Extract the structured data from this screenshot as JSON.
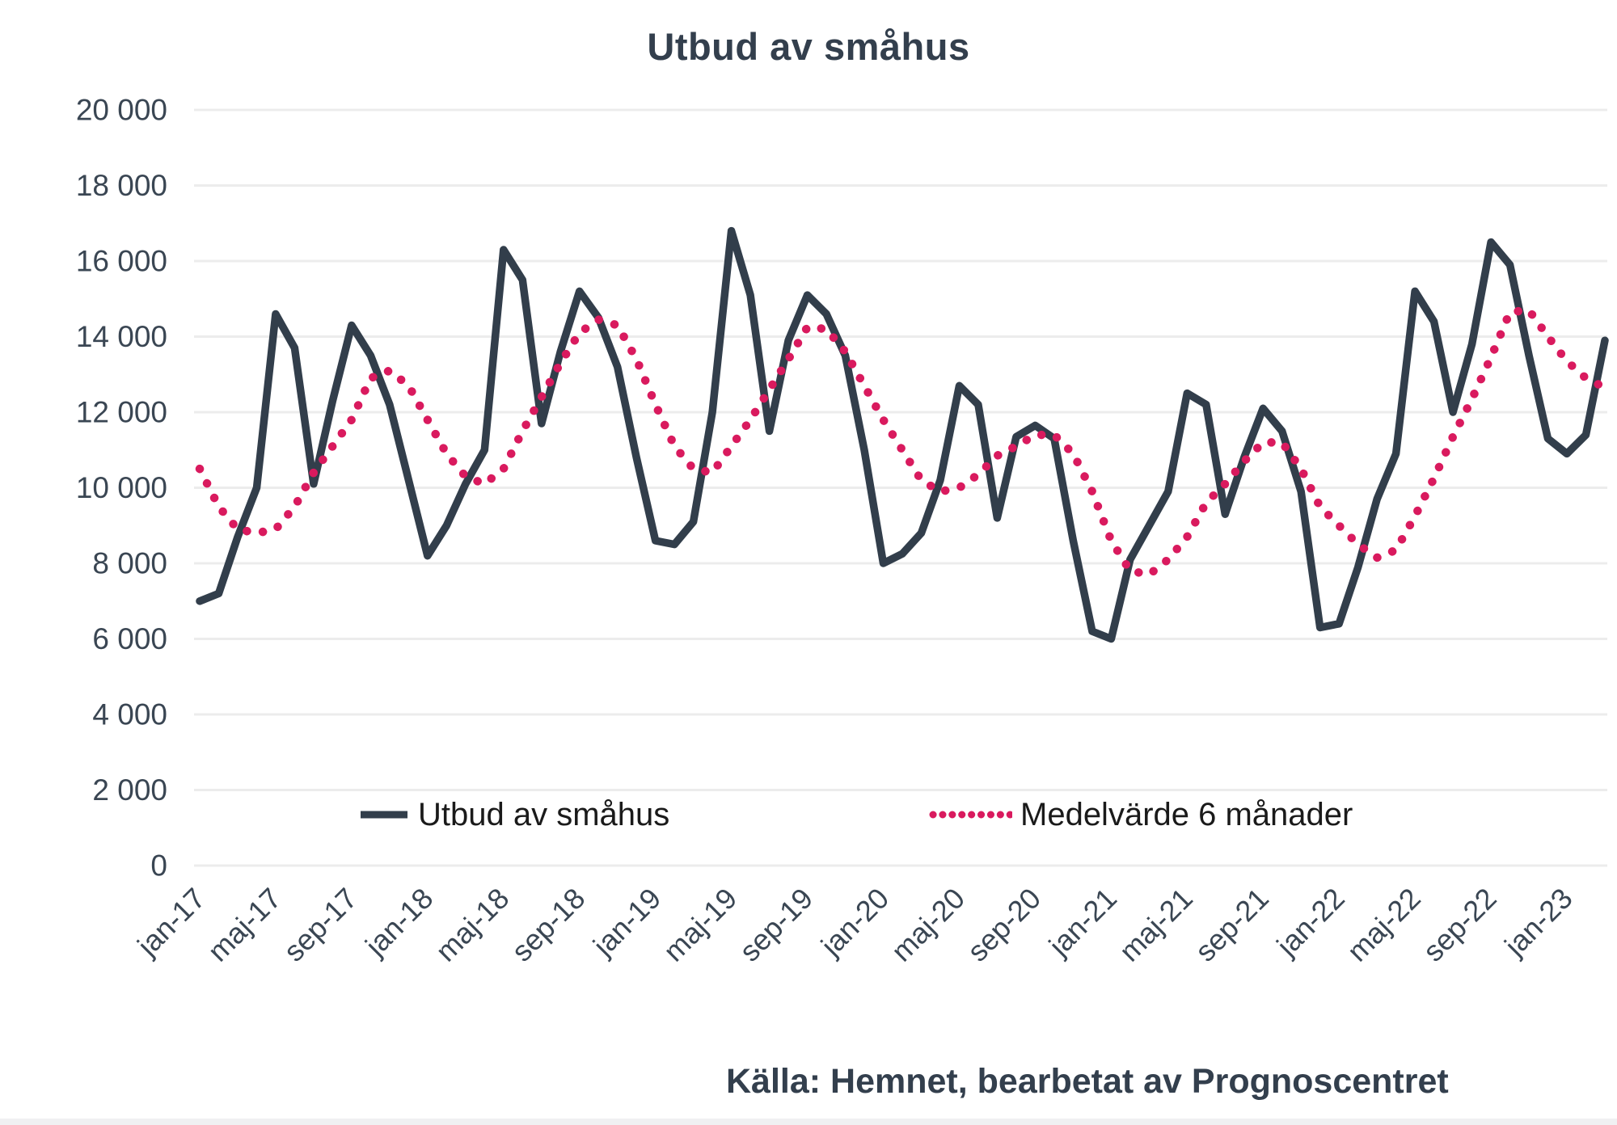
{
  "title": "Utbud av småhus",
  "source": "Källa: Hemnet, bearbetat av Prognoscentret",
  "colors": {
    "line_dark": "#323E4B",
    "line_pink": "#D91A5E",
    "grid": "#ECECEC",
    "axis_text": "#3A4653",
    "title_text": "#333F4D",
    "legend_text": "#1A1A1A",
    "source_text": "#333F4D",
    "background": "#FFFFFF",
    "bottom_strip": "#F0F0F2"
  },
  "legend": [
    {
      "label": "Utbud av småhus",
      "style": "solid"
    },
    {
      "label": "Medelvärde 6 månader",
      "style": "dotted"
    }
  ],
  "chart_data": {
    "type": "line",
    "title": "Utbud av småhus",
    "xlabel": "",
    "ylabel": "",
    "ylim": [
      0,
      20000
    ],
    "y_tick_step": 2000,
    "y_tick_labels": [
      "0",
      "2 000",
      "4 000",
      "6 000",
      "8 000",
      "10 000",
      "12 000",
      "14 000",
      "16 000",
      "18 000",
      "20 000"
    ],
    "grid": true,
    "legend_position": "inside-bottom",
    "x_tick_every": 4,
    "x": [
      "jan-17",
      "feb-17",
      "mar-17",
      "apr-17",
      "maj-17",
      "jun-17",
      "jul-17",
      "aug-17",
      "sep-17",
      "okt-17",
      "nov-17",
      "dec-17",
      "jan-18",
      "feb-18",
      "mar-18",
      "apr-18",
      "maj-18",
      "jun-18",
      "jul-18",
      "aug-18",
      "sep-18",
      "okt-18",
      "nov-18",
      "dec-18",
      "jan-19",
      "feb-19",
      "mar-19",
      "apr-19",
      "maj-19",
      "jun-19",
      "jul-19",
      "aug-19",
      "sep-19",
      "okt-19",
      "nov-19",
      "dec-19",
      "jan-20",
      "feb-20",
      "mar-20",
      "apr-20",
      "maj-20",
      "jun-20",
      "jul-20",
      "aug-20",
      "sep-20",
      "okt-20",
      "nov-20",
      "dec-20",
      "jan-21",
      "feb-21",
      "mar-21",
      "apr-21",
      "maj-21",
      "jun-21",
      "jul-21",
      "aug-21",
      "sep-21",
      "okt-21",
      "nov-21",
      "dec-21",
      "jan-22",
      "feb-22",
      "mar-22",
      "apr-22",
      "maj-22",
      "jun-22",
      "jul-22",
      "aug-22",
      "sep-22",
      "okt-22",
      "nov-22",
      "dec-22",
      "jan-23",
      "feb-23",
      "mar-23"
    ],
    "series": [
      {
        "name": "Utbud av småhus",
        "style": "solid",
        "color": "#323E4B",
        "values": [
          7000,
          7200,
          8700,
          10000,
          14600,
          13700,
          10100,
          12300,
          14300,
          13500,
          12200,
          10200,
          8200,
          9000,
          10100,
          11000,
          16300,
          15500,
          11700,
          13600,
          15200,
          14500,
          13200,
          10800,
          8600,
          8500,
          9100,
          12000,
          16800,
          15100,
          11500,
          13900,
          15100,
          14600,
          13500,
          11000,
          8000,
          8250,
          8800,
          10200,
          12700,
          12200,
          9200,
          11350,
          11650,
          11300,
          8600,
          6200,
          6000,
          8100,
          9000,
          9900,
          12500,
          12200,
          9300,
          10800,
          12100,
          11500,
          9900,
          6300,
          6400,
          7900,
          9700,
          10900,
          15200,
          14400,
          12000,
          13800,
          16500,
          15900,
          13500,
          11300,
          10900,
          11400,
          13900
        ]
      },
      {
        "name": "Medelvärde 6 månader",
        "style": "dotted",
        "color": "#D91A5E",
        "values": [
          10500,
          9500,
          8900,
          8800,
          8900,
          9500,
          10400,
          11100,
          11800,
          12900,
          13100,
          12700,
          11800,
          10900,
          10300,
          10100,
          10500,
          11500,
          12400,
          13300,
          14100,
          14450,
          14300,
          13400,
          12200,
          11100,
          10500,
          10400,
          11100,
          11800,
          12600,
          13400,
          14250,
          14200,
          13600,
          12700,
          11800,
          11000,
          10200,
          9900,
          10000,
          10350,
          10850,
          11100,
          11400,
          11400,
          10900,
          9900,
          8600,
          7800,
          7700,
          8100,
          8700,
          9600,
          10100,
          10700,
          11200,
          11200,
          10500,
          9500,
          9000,
          8500,
          8150,
          8350,
          9250,
          10250,
          11350,
          12350,
          13450,
          14650,
          14700,
          14000,
          13350,
          12900,
          12650
        ]
      }
    ]
  }
}
